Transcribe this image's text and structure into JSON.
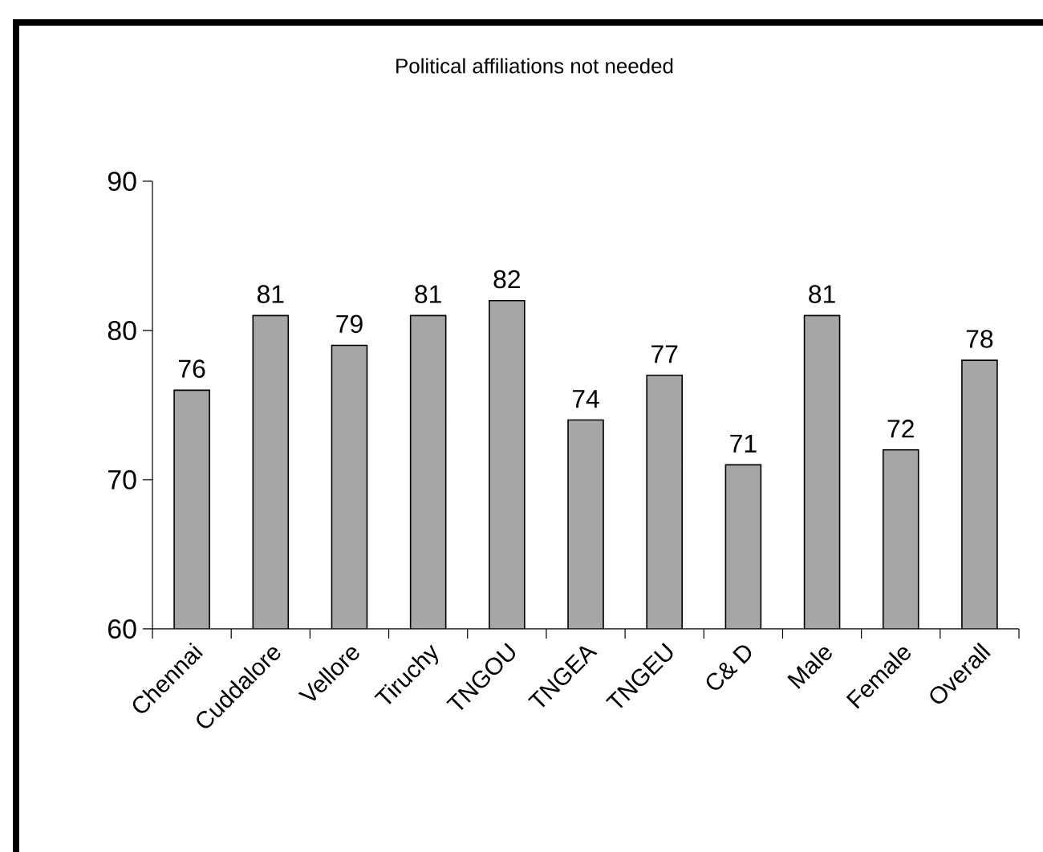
{
  "chart_data": {
    "type": "bar",
    "title": "Political affiliations not needed",
    "categories": [
      "Chennai",
      "Cuddalore",
      "Vellore",
      "Tiruchy",
      "TNGOU",
      "TNGEA",
      "TNGEU",
      "C& D",
      "Male",
      "Female",
      "Overall"
    ],
    "values": [
      76,
      81,
      79,
      81,
      82,
      74,
      77,
      71,
      81,
      72,
      78
    ],
    "color": "#a6a6a6",
    "ylim": [
      60,
      90
    ],
    "yticks": [
      60,
      70,
      80,
      90
    ],
    "data_labels": true
  }
}
